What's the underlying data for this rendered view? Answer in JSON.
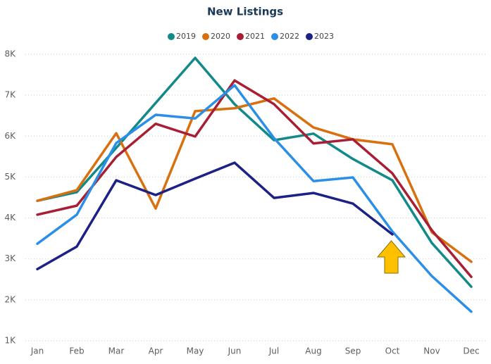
{
  "chart_data": {
    "type": "line",
    "title": "New Listings",
    "categories": [
      "Jan",
      "Feb",
      "Mar",
      "Apr",
      "May",
      "Jun",
      "Jul",
      "Aug",
      "Sep",
      "Oct",
      "Nov",
      "Dec"
    ],
    "series": [
      {
        "name": "2019",
        "color": "#138a8a",
        "values": [
          4420,
          4630,
          5710,
          6810,
          7910,
          6780,
          5900,
          6060,
          5440,
          4920,
          3390,
          2320
        ]
      },
      {
        "name": "2020",
        "color": "#d9700f",
        "values": [
          4420,
          4680,
          6070,
          4230,
          6610,
          6680,
          6920,
          6210,
          5920,
          5800,
          3650,
          2930
        ]
      },
      {
        "name": "2021",
        "color": "#a81e34",
        "values": [
          4080,
          4300,
          5490,
          6300,
          5990,
          7360,
          6780,
          5820,
          5920,
          5090,
          3700,
          2560
        ]
      },
      {
        "name": "2022",
        "color": "#2b8fe8",
        "values": [
          3370,
          4080,
          5830,
          6520,
          6430,
          7240,
          5950,
          4900,
          4990,
          3670,
          2580,
          1710
        ]
      },
      {
        "name": "2023",
        "color": "#1b2185",
        "values": [
          2750,
          3300,
          4920,
          4560,
          4960,
          5350,
          4490,
          4610,
          4350,
          3600,
          null,
          null
        ]
      }
    ],
    "ylim": [
      1000,
      8000
    ],
    "yticks": [
      {
        "value": 1000,
        "label": "1K"
      },
      {
        "value": 2000,
        "label": "2K"
      },
      {
        "value": 3000,
        "label": "3K"
      },
      {
        "value": 4000,
        "label": "4K"
      },
      {
        "value": 5000,
        "label": "5K"
      },
      {
        "value": 6000,
        "label": "6K"
      },
      {
        "value": 7000,
        "label": "7K"
      },
      {
        "value": 8000,
        "label": "8K"
      }
    ],
    "grid": true
  }
}
